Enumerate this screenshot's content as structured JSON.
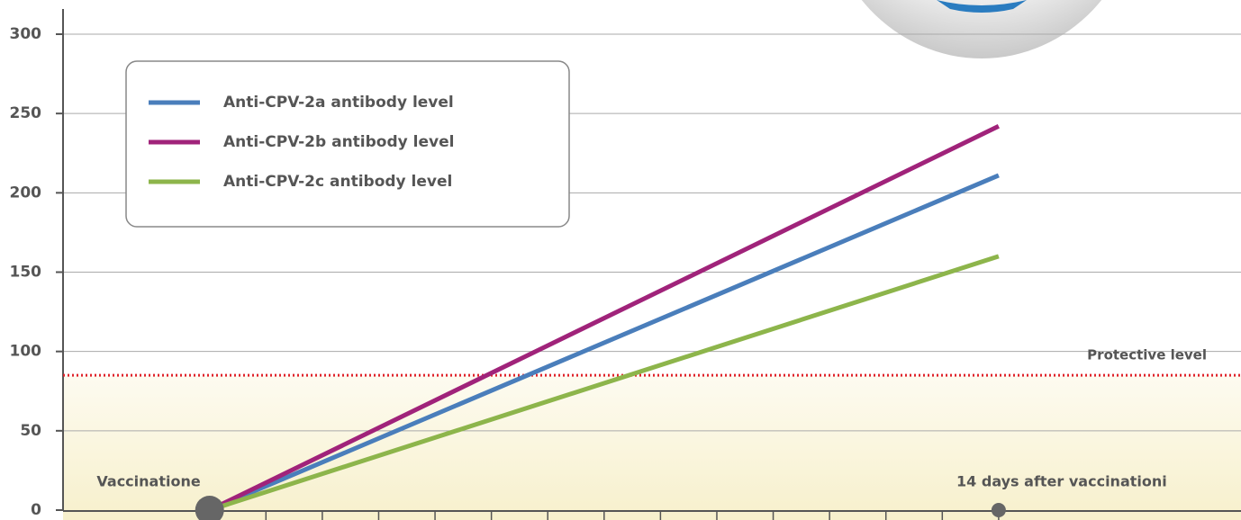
{
  "chart_data": {
    "type": "line",
    "x": [
      0,
      14
    ],
    "point_labels": [
      "Vaccinatione",
      "14 days after vaccinationi"
    ],
    "series": [
      {
        "name": "Anti-CPV-2a antibody level",
        "color": "#4a7ebb",
        "values": [
          0,
          211
        ]
      },
      {
        "name": "Anti-CPV-2b antibody level",
        "color": "#a0237a",
        "values": [
          0,
          242
        ]
      },
      {
        "name": "Anti-CPV-2c antibody level",
        "color": "#8db54b",
        "values": [
          0,
          160
        ]
      }
    ],
    "protective_level": {
      "label": "Protective level",
      "value": 85,
      "color": "#e0242a"
    },
    "xlim": [
      -2.6,
      18.3
    ],
    "xticks": [
      0,
      1,
      2,
      3,
      4,
      5,
      6,
      7,
      8,
      9,
      10,
      11,
      12,
      13,
      14
    ],
    "ylim": [
      0,
      300
    ],
    "yticks": [
      0,
      50,
      100,
      150,
      200,
      250,
      300
    ],
    "grid": true
  }
}
